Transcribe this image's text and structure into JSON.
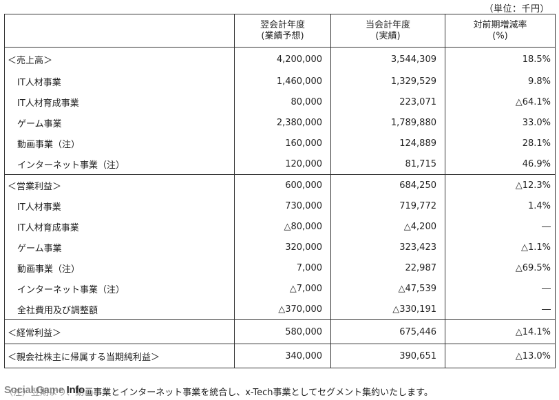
{
  "unit_label": "（単位：千円）",
  "header": {
    "col0": "",
    "col1_line1": "翌会計年度",
    "col1_line2": "(業績予想)",
    "col2_line1": "当会計年度",
    "col2_line2": "(実績)",
    "col3_line1": "対前期増減率",
    "col3_line2": "(%)"
  },
  "rows": [
    {
      "label": "＜売上高＞",
      "forecast": "4,200,000",
      "actual": "3,544,309",
      "change": "18.5%"
    },
    {
      "label": "IT人材事業",
      "forecast": "1,460,000",
      "actual": "1,329,529",
      "change": "9.8%"
    },
    {
      "label": "IT人材育成事業",
      "forecast": "80,000",
      "actual": "223,071",
      "change": "△64.1%"
    },
    {
      "label": "ゲーム事業",
      "forecast": "2,380,000",
      "actual": "1,789,880",
      "change": "33.0%"
    },
    {
      "label": "動画事業（注）",
      "forecast": "160,000",
      "actual": "124,889",
      "change": "28.1%"
    },
    {
      "label": "インターネット事業（注）",
      "forecast": "120,000",
      "actual": "81,715",
      "change": "46.9%"
    },
    {
      "label": "＜営業利益＞",
      "forecast": "600,000",
      "actual": "684,250",
      "change": "△12.3%"
    },
    {
      "label": "IT人材事業",
      "forecast": "730,000",
      "actual": "719,772",
      "change": "1.4%"
    },
    {
      "label": "IT人材育成事業",
      "forecast": "△80,000",
      "actual": "△4,200",
      "change": "―"
    },
    {
      "label": "ゲーム事業",
      "forecast": "320,000",
      "actual": "323,423",
      "change": "△1.1%"
    },
    {
      "label": "動画事業（注）",
      "forecast": "7,000",
      "actual": "22,987",
      "change": "△69.5%"
    },
    {
      "label": "インターネット事業（注）",
      "forecast": "△7,000",
      "actual": "△47,539",
      "change": "―"
    },
    {
      "label": "全社費用及び調整額",
      "forecast": "△370,000",
      "actual": "△330,191",
      "change": "―"
    },
    {
      "label": "＜経常利益＞",
      "forecast": "580,000",
      "actual": "675,446",
      "change": "△14.1%"
    },
    {
      "label": "＜親会社株主に帰属する当期純利益＞",
      "forecast": "340,000",
      "actual": "390,651",
      "change": "△13.0%"
    }
  ],
  "footnote": {
    "label": "（注）",
    "text": "翌期より、動画事業とインターネット事業を統合し、x-Tech事業としてセグメント集約いたします。"
  },
  "watermark": {
    "text_part1": "Social Game ",
    "text_part2": "Info"
  }
}
